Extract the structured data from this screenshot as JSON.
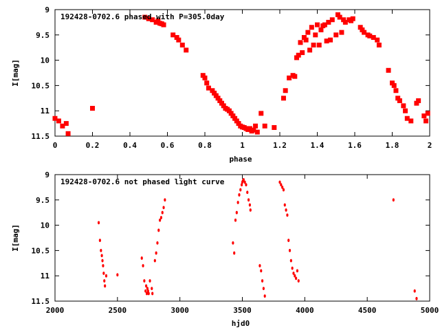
{
  "colors": {
    "points": "#ff0000",
    "axes": "#000000",
    "background": "#ffffff"
  },
  "chart_data": [
    {
      "type": "scatter",
      "title": "192428-0702.6 phased with P=305.0day",
      "xlabel": "phase",
      "ylabel": "I[mag]",
      "xlim": [
        0,
        2
      ],
      "ylim": [
        9,
        11.5
      ],
      "y_inverted": true,
      "grid": false,
      "marker": "filled-square",
      "xticks": [
        "0",
        "0.2",
        "0.4",
        "0.6",
        "0.8",
        "1",
        "1.2",
        "1.4",
        "1.6",
        "1.8",
        "2"
      ],
      "yticks": [
        "9",
        "9.5",
        "10",
        "10.5",
        "11",
        "11.5"
      ],
      "series": [
        {
          "x": [
            0.0,
            0.02,
            0.04,
            0.06,
            0.07,
            0.2,
            0.48,
            0.5,
            0.52,
            0.54,
            0.55,
            0.56,
            0.57,
            0.58,
            0.63,
            0.65,
            0.66,
            0.68,
            0.7,
            0.79,
            0.8,
            0.81,
            0.82,
            0.84,
            0.85,
            0.86,
            0.87,
            0.88,
            0.89,
            0.9,
            0.91,
            0.92,
            0.93,
            0.94,
            0.95,
            0.96,
            0.97,
            0.98,
            0.99,
            1.0,
            1.01,
            1.02,
            1.03,
            1.04,
            1.05,
            1.06,
            1.07,
            1.08,
            1.1,
            1.12,
            1.17,
            1.22,
            1.23,
            1.25,
            1.27,
            1.28,
            1.29,
            1.3,
            1.31,
            1.32,
            1.33,
            1.34,
            1.35,
            1.36,
            1.37,
            1.38,
            1.39,
            1.4,
            1.41,
            1.42,
            1.43,
            1.44,
            1.45,
            1.46,
            1.47,
            1.48,
            1.5,
            1.51,
            1.52,
            1.53,
            1.54,
            1.55,
            1.57,
            1.58,
            1.59,
            1.63,
            1.64,
            1.65,
            1.67,
            1.68,
            1.7,
            1.72,
            1.73,
            1.78,
            1.8,
            1.81,
            1.82,
            1.83,
            1.84,
            1.86,
            1.87,
            1.88,
            1.9,
            1.93,
            1.94,
            1.97,
            1.98,
            1.99
          ],
          "y": [
            11.15,
            11.2,
            11.3,
            11.25,
            11.45,
            10.95,
            9.15,
            9.18,
            9.2,
            9.25,
            9.22,
            9.27,
            9.28,
            9.3,
            9.5,
            9.55,
            9.6,
            9.7,
            9.8,
            10.3,
            10.35,
            10.45,
            10.55,
            10.6,
            10.65,
            10.7,
            10.75,
            10.8,
            10.85,
            10.9,
            10.95,
            10.97,
            11.0,
            11.05,
            11.1,
            11.15,
            11.2,
            11.25,
            11.3,
            11.32,
            11.33,
            11.35,
            11.37,
            11.35,
            11.4,
            11.38,
            11.3,
            11.42,
            11.05,
            11.3,
            11.33,
            10.75,
            10.6,
            10.35,
            10.3,
            10.32,
            9.95,
            9.9,
            9.65,
            9.85,
            9.55,
            9.6,
            9.45,
            9.8,
            9.35,
            9.7,
            9.5,
            9.3,
            9.7,
            9.4,
            9.32,
            9.3,
            9.62,
            9.25,
            9.6,
            9.2,
            9.5,
            9.1,
            9.15,
            9.45,
            9.2,
            9.25,
            9.2,
            9.22,
            9.18,
            9.35,
            9.4,
            9.45,
            9.5,
            9.52,
            9.55,
            9.6,
            9.7,
            10.2,
            10.45,
            10.5,
            10.6,
            10.75,
            10.8,
            10.9,
            11.0,
            11.15,
            11.2,
            10.85,
            10.8,
            11.1,
            11.2,
            11.05
          ]
        }
      ]
    },
    {
      "type": "scatter",
      "title": "192428-0702.6 not phased light curve",
      "xlabel": "hjd0",
      "ylabel": "I[mag]",
      "xlim": [
        2000,
        5000
      ],
      "ylim": [
        9,
        11.5
      ],
      "y_inverted": true,
      "grid": false,
      "marker": "small-filled-dot",
      "xticks": [
        "2000",
        "2500",
        "3000",
        "3500",
        "4000",
        "4500",
        "5000"
      ],
      "yticks": [
        "9",
        "9.5",
        "10",
        "10.5",
        "11",
        "11.5"
      ],
      "series": [
        {
          "x": [
            2350,
            2360,
            2368,
            2375,
            2380,
            2385,
            2390,
            2395,
            2400,
            2410,
            2500,
            2695,
            2705,
            2715,
            2725,
            2730,
            2735,
            2740,
            2745,
            2750,
            2760,
            2775,
            2780,
            2800,
            2810,
            2820,
            2830,
            2840,
            2850,
            2860,
            2870,
            2880,
            3425,
            3435,
            3445,
            3455,
            3465,
            3475,
            3485,
            3495,
            3500,
            3505,
            3510,
            3520,
            3530,
            3540,
            3550,
            3560,
            3565,
            3640,
            3650,
            3660,
            3670,
            3680,
            3800,
            3810,
            3820,
            3830,
            3840,
            3850,
            3860,
            3870,
            3880,
            3890,
            3900,
            3910,
            3920,
            3930,
            3940,
            3950,
            4710,
            4880,
            4895
          ],
          "y": [
            9.95,
            10.3,
            10.5,
            10.6,
            10.7,
            10.8,
            10.95,
            11.1,
            11.2,
            11.0,
            10.98,
            10.65,
            10.8,
            11.1,
            11.3,
            11.2,
            11.35,
            11.25,
            11.3,
            11.35,
            11.1,
            11.25,
            11.35,
            10.7,
            10.55,
            10.35,
            10.1,
            9.9,
            9.85,
            9.75,
            9.65,
            9.5,
            10.35,
            10.55,
            9.9,
            9.75,
            9.55,
            9.4,
            9.3,
            9.2,
            9.15,
            9.12,
            9.1,
            9.15,
            9.2,
            9.35,
            9.5,
            9.6,
            9.7,
            10.8,
            10.9,
            11.1,
            11.25,
            11.4,
            9.15,
            9.2,
            9.25,
            9.3,
            9.6,
            9.7,
            9.8,
            10.3,
            10.5,
            10.7,
            10.85,
            10.95,
            11.0,
            11.05,
            10.9,
            11.1,
            9.5,
            11.3,
            11.45
          ]
        }
      ]
    }
  ]
}
